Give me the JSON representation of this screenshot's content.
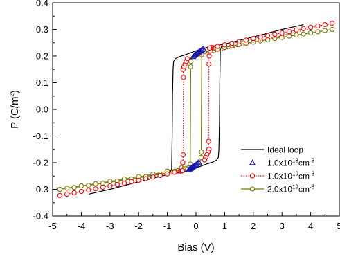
{
  "chart_data": {
    "type": "line",
    "title": "",
    "xlabel": "Bias (V)",
    "ylabel": {
      "main": "P (C/m",
      "sup": "2",
      "tail": ")"
    },
    "xlim": [
      -5,
      5
    ],
    "ylim": [
      -0.4,
      0.4
    ],
    "xticks": [
      -5,
      -4,
      -3,
      -2,
      -1,
      0,
      1,
      2,
      3,
      4,
      5
    ],
    "xtick_labels": [
      "-5",
      "-4",
      "-3",
      "-2",
      "-1",
      "0",
      "1",
      "2",
      "3",
      "4",
      "5"
    ],
    "yticks": [
      -0.4,
      -0.3,
      -0.2,
      -0.1,
      0.0,
      0.1,
      0.2,
      0.3,
      0.4
    ],
    "ytick_labels": [
      "-0.4",
      "-0.3",
      "-0.2",
      "-0.1",
      "0.0",
      "0.1",
      "0.2",
      "0.3",
      "0.4"
    ],
    "grid": false,
    "legend_position": "bottom-right",
    "series": [
      {
        "name": "Ideal loop",
        "legend": {
          "prefix": "Ideal loop",
          "sup1": "",
          "mid": "",
          "sup2": ""
        },
        "color": "#000000",
        "marker": "none",
        "line": "solid",
        "x": [
          -3.75,
          -3.0,
          -2.0,
          -1.0,
          -0.9,
          -0.85,
          -0.83,
          -0.82,
          -0.8,
          -0.78,
          -0.72,
          -0.6,
          -0.4,
          -0.2,
          0.0,
          0.5,
          1.0,
          2.0,
          3.0,
          3.75,
          3.75,
          3.0,
          2.0,
          1.0,
          0.9,
          0.85,
          0.83,
          0.82,
          0.8,
          0.78,
          0.72,
          0.6,
          0.4,
          0.2,
          0.0,
          -0.5,
          -1.0,
          -2.0,
          -3.0,
          -3.75
        ],
        "y": [
          -0.318,
          -0.3,
          -0.272,
          -0.245,
          -0.238,
          -0.225,
          -0.1,
          0.05,
          0.15,
          0.18,
          0.19,
          0.197,
          0.204,
          0.212,
          0.22,
          0.236,
          0.245,
          0.272,
          0.3,
          0.318,
          0.318,
          0.3,
          0.272,
          0.245,
          0.238,
          0.225,
          0.1,
          -0.05,
          -0.15,
          -0.18,
          -0.19,
          -0.197,
          -0.204,
          -0.212,
          -0.22,
          -0.236,
          -0.245,
          -0.272,
          -0.3,
          -0.318
        ]
      },
      {
        "name": "1.0x10^18 cm^-3",
        "legend": {
          "prefix": "1.0x10",
          "sup1": "18",
          "mid": "cm",
          "sup2": "-3"
        },
        "color": "#1a1aa6",
        "marker": "triangle",
        "line": "none",
        "x": [
          -0.1,
          -0.06,
          -0.02,
          0.02,
          0.06,
          0.1,
          0.14,
          0.18,
          0.22,
          0.26,
          0.1,
          0.06,
          0.02,
          -0.02,
          -0.06,
          -0.1,
          -0.14,
          -0.18,
          -0.22,
          -0.26
        ],
        "y": [
          0.198,
          0.202,
          0.206,
          0.209,
          0.212,
          0.215,
          0.218,
          0.221,
          0.224,
          0.227,
          -0.198,
          -0.202,
          -0.206,
          -0.209,
          -0.212,
          -0.215,
          -0.218,
          -0.221,
          -0.224,
          -0.227
        ]
      },
      {
        "name": "1.0x10^19 cm^-3",
        "legend": {
          "prefix": "1.0x10",
          "sup1": "19",
          "mid": "cm",
          "sup2": "-3"
        },
        "color": "#ff0000",
        "marker": "circle",
        "line": "dotted",
        "x": [
          -4.75,
          -4.5,
          -4.25,
          -4.0,
          -3.75,
          -3.5,
          -3.25,
          -3.0,
          -2.75,
          -2.5,
          -2.25,
          -2.0,
          -1.75,
          -1.5,
          -1.25,
          -1.0,
          -0.75,
          -0.55,
          -0.5,
          -0.47,
          -0.46,
          -0.45,
          -0.44,
          -0.45,
          -0.42,
          -0.38,
          -0.34,
          -0.3,
          4.75,
          4.5,
          4.25,
          4.0,
          3.75,
          3.5,
          3.25,
          3.0,
          2.75,
          2.5,
          2.25,
          2.0,
          1.75,
          1.5,
          1.25,
          1.0,
          0.75,
          0.55,
          0.5,
          0.47,
          0.46,
          0.45,
          0.44,
          0.45,
          0.42,
          0.38,
          0.34,
          0.3
        ],
        "y": [
          -0.323,
          -0.318,
          -0.313,
          -0.308,
          -0.303,
          -0.298,
          -0.292,
          -0.287,
          -0.282,
          -0.277,
          -0.271,
          -0.266,
          -0.26,
          -0.254,
          -0.248,
          -0.242,
          -0.236,
          -0.232,
          -0.231,
          -0.23,
          -0.2,
          -0.17,
          0.12,
          0.15,
          0.16,
          0.17,
          0.18,
          0.19,
          0.323,
          0.318,
          0.313,
          0.308,
          0.303,
          0.298,
          0.292,
          0.287,
          0.282,
          0.277,
          0.271,
          0.266,
          0.26,
          0.254,
          0.248,
          0.242,
          0.236,
          0.232,
          0.231,
          0.23,
          0.2,
          0.17,
          -0.12,
          -0.15,
          -0.16,
          -0.17,
          -0.18,
          -0.19
        ]
      },
      {
        "name": "2.0x10^19 cm^-3",
        "legend": {
          "prefix": "2.0x10",
          "sup1": "19",
          "mid": "cm",
          "sup2": "-3"
        },
        "color": "#7a7a00",
        "marker": "circle",
        "line": "solid",
        "x": [
          -4.75,
          -4.25,
          -3.75,
          -3.25,
          -2.75,
          -2.25,
          -1.75,
          -1.25,
          -0.75,
          -0.4,
          -0.3,
          -0.25,
          -0.22,
          -0.2,
          -0.18,
          -0.2,
          -0.15,
          -0.1,
          -0.05,
          0.0,
          0.1,
          0.2,
          0.3,
          0.5,
          0.75,
          1.25,
          1.75,
          2.25,
          2.75,
          3.25,
          3.75,
          4.25,
          4.75,
          4.75,
          4.25,
          3.75,
          3.25,
          2.75,
          2.25,
          1.75,
          1.25,
          0.75,
          0.4,
          0.3,
          0.25,
          0.22,
          0.2,
          0.18,
          0.2,
          0.15,
          0.1,
          0.05,
          0.0,
          -0.1,
          -0.2,
          -0.3,
          -0.5,
          -0.75,
          -1.25,
          -1.75,
          -2.25,
          -2.75,
          -3.25,
          -3.75,
          -4.25,
          -4.75
        ],
        "y": [
          -0.3,
          -0.293,
          -0.285,
          -0.277,
          -0.269,
          -0.261,
          -0.252,
          -0.243,
          -0.233,
          -0.226,
          -0.225,
          -0.224,
          -0.223,
          -0.205,
          0.175,
          0.185,
          0.192,
          0.197,
          0.2,
          0.203,
          0.206,
          0.209,
          0.213,
          0.219,
          0.226,
          0.238,
          0.248,
          0.257,
          0.266,
          0.275,
          0.283,
          0.291,
          0.3,
          0.3,
          0.291,
          0.283,
          0.275,
          0.266,
          0.257,
          0.248,
          0.238,
          0.226,
          0.219,
          0.218,
          0.217,
          0.216,
          0.205,
          -0.175,
          -0.185,
          -0.192,
          -0.197,
          -0.2,
          -0.203,
          -0.206,
          -0.209,
          -0.213,
          -0.219,
          -0.226,
          -0.238,
          -0.248,
          -0.257,
          -0.266,
          -0.275,
          -0.283,
          -0.291,
          -0.3
        ],
        "marker_x": [
          -4.75,
          -4.25,
          -3.75,
          -3.25,
          -2.75,
          -2.25,
          -1.75,
          -1.25,
          -0.75,
          -0.3,
          -0.2,
          -0.19,
          -0.18,
          0.0,
          0.5,
          1.0,
          1.5,
          2.0,
          2.5,
          3.0,
          3.5,
          4.0,
          4.5,
          0.3,
          0.2,
          0.19,
          0.18,
          -0.5,
          -1.0,
          -1.5,
          -2.0,
          -2.5,
          -3.0,
          -3.5,
          -4.0,
          -4.5,
          4.75,
          4.25,
          3.75,
          3.25,
          2.75,
          2.25,
          1.75,
          1.25,
          0.75
        ],
        "marker_y": [
          -0.3,
          -0.293,
          -0.285,
          -0.277,
          -0.269,
          -0.261,
          -0.252,
          -0.243,
          -0.233,
          -0.225,
          -0.205,
          0.16,
          0.18,
          0.203,
          0.219,
          0.232,
          0.243,
          0.252,
          0.261,
          0.27,
          0.279,
          0.287,
          0.296,
          0.217,
          0.205,
          -0.16,
          -0.18,
          -0.219,
          -0.232,
          -0.243,
          -0.252,
          -0.261,
          -0.27,
          -0.279,
          -0.287,
          -0.296,
          0.3,
          0.291,
          0.283,
          0.275,
          0.266,
          0.257,
          0.248,
          0.238,
          0.226
        ]
      }
    ]
  }
}
